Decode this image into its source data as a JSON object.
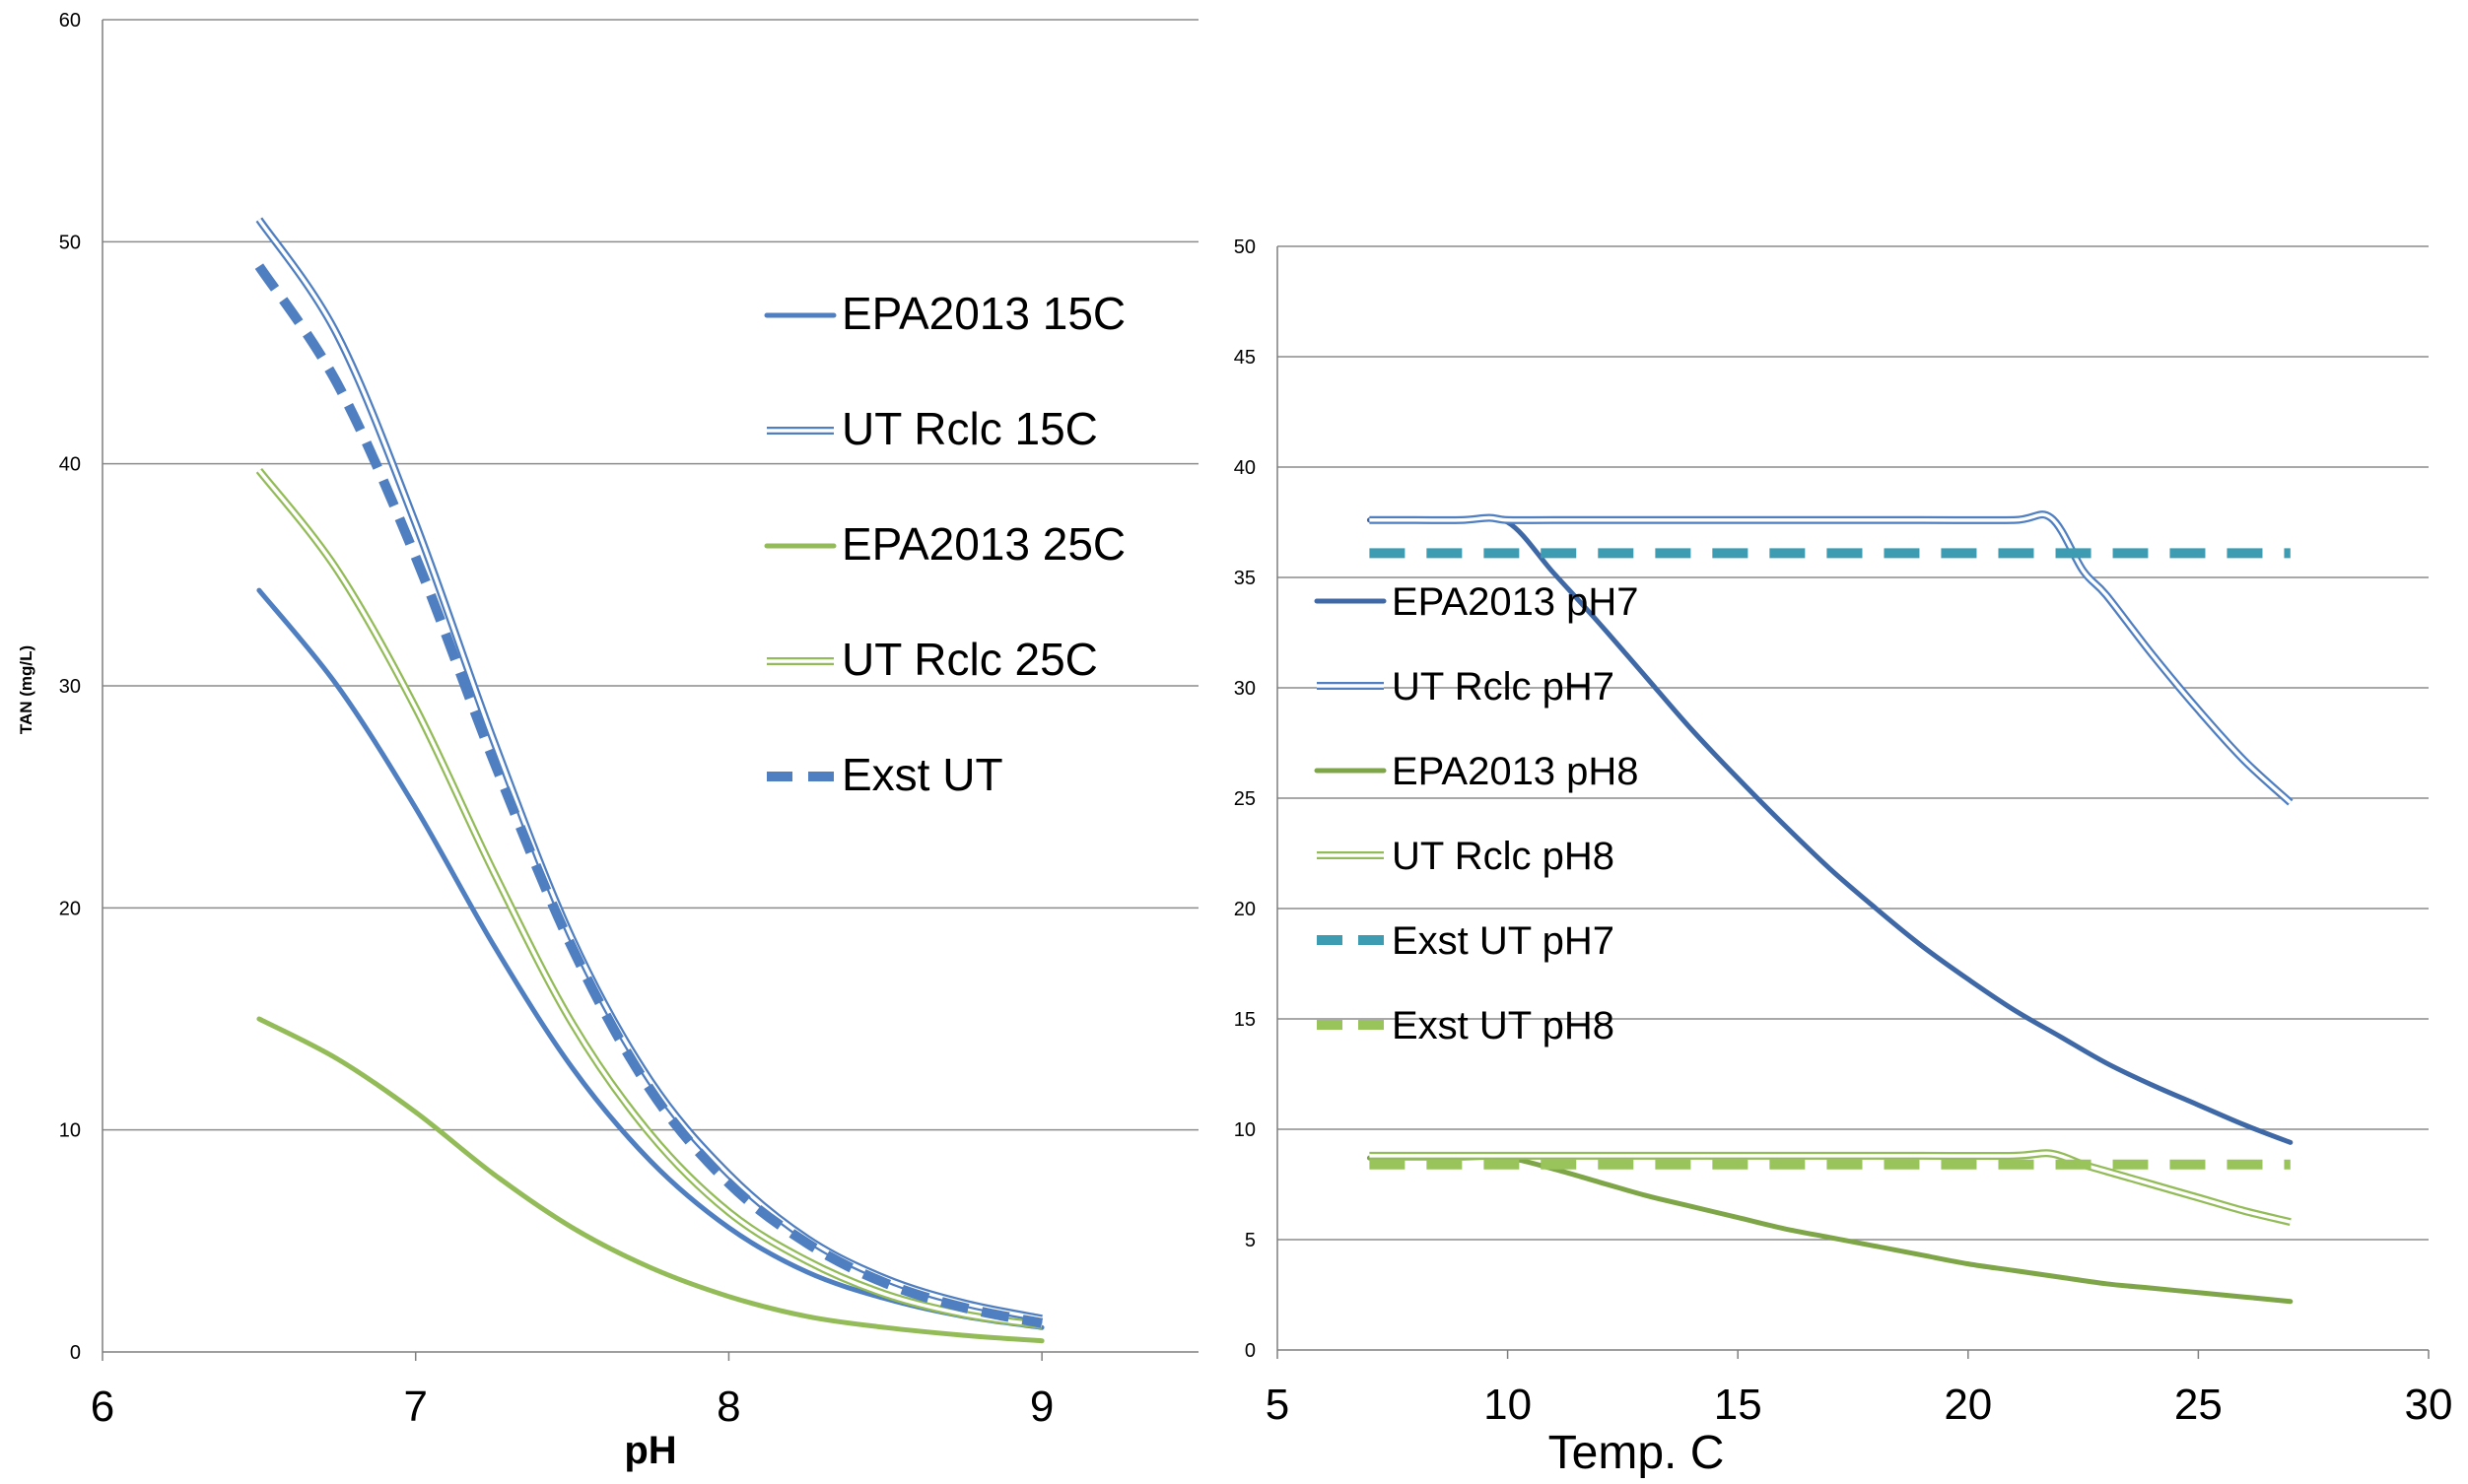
{
  "colors": {
    "blue": "#4f7ec1",
    "green": "#93bb58",
    "dark_blue": "#3f68a6",
    "olive_green": "#7ea547",
    "teal": "#3d9cb2",
    "light_green": "#99c45c",
    "grid": "#8c8c8c"
  },
  "chart_data": [
    {
      "type": "line",
      "title": "",
      "xlabel": "pH",
      "ylabel": "TAN (mg/L)",
      "xlim": [
        6,
        9.5
      ],
      "ylim": [
        0,
        60
      ],
      "xticks": [
        "6",
        "7",
        "8",
        "9"
      ],
      "yticks": [
        "0",
        "10",
        "20",
        "30",
        "40",
        "50",
        "60"
      ],
      "grid": true,
      "legend": "right",
      "series": [
        {
          "name": "EPA2013 15C",
          "color": "#4f7ec1",
          "style": "solid",
          "points": [
            [
              6.5,
              34.3
            ],
            [
              6.75,
              30.0
            ],
            [
              7.0,
              24.5
            ],
            [
              7.25,
              18.3
            ],
            [
              7.5,
              12.8
            ],
            [
              7.75,
              8.6
            ],
            [
              8.0,
              5.6
            ],
            [
              8.25,
              3.6
            ],
            [
              8.5,
              2.4
            ],
            [
              8.75,
              1.6
            ],
            [
              9.0,
              1.1
            ]
          ]
        },
        {
          "name": "UT Rclc 15C",
          "color": "#4f7ec1",
          "style": "double",
          "points": [
            [
              6.5,
              51.0
            ],
            [
              6.75,
              45.8
            ],
            [
              7.0,
              37.3
            ],
            [
              7.25,
              27.5
            ],
            [
              7.5,
              18.6
            ],
            [
              7.75,
              12.2
            ],
            [
              8.0,
              8.0
            ],
            [
              8.25,
              5.1
            ],
            [
              8.5,
              3.3
            ],
            [
              8.75,
              2.2
            ],
            [
              9.0,
              1.5
            ]
          ]
        },
        {
          "name": "EPA2013 25C",
          "color": "#93bb58",
          "style": "solid",
          "points": [
            [
              6.5,
              15.0
            ],
            [
              6.75,
              13.2
            ],
            [
              7.0,
              10.8
            ],
            [
              7.25,
              8.0
            ],
            [
              7.5,
              5.6
            ],
            [
              7.75,
              3.8
            ],
            [
              8.0,
              2.5
            ],
            [
              8.25,
              1.6
            ],
            [
              8.5,
              1.1
            ],
            [
              8.75,
              0.75
            ],
            [
              9.0,
              0.5
            ]
          ]
        },
        {
          "name": "UT Rclc 25C",
          "color": "#93bb58",
          "style": "double",
          "points": [
            [
              6.5,
              39.7
            ],
            [
              6.75,
              35.2
            ],
            [
              7.0,
              29.0
            ],
            [
              7.25,
              21.6
            ],
            [
              7.5,
              14.8
            ],
            [
              7.75,
              9.8
            ],
            [
              8.0,
              6.3
            ],
            [
              8.25,
              4.1
            ],
            [
              8.5,
              2.6
            ],
            [
              8.75,
              1.7
            ],
            [
              9.0,
              1.2
            ]
          ]
        },
        {
          "name": "Exst UT",
          "color": "#4f7ec1",
          "style": "dashed",
          "points": [
            [
              6.5,
              48.9
            ],
            [
              6.75,
              43.6
            ],
            [
              7.0,
              35.8
            ],
            [
              7.25,
              26.6
            ],
            [
              7.5,
              18.2
            ],
            [
              7.75,
              11.8
            ],
            [
              8.0,
              7.6
            ],
            [
              8.25,
              4.9
            ],
            [
              8.5,
              3.1
            ],
            [
              8.75,
              2.0
            ],
            [
              9.0,
              1.3
            ]
          ]
        }
      ]
    },
    {
      "type": "line",
      "title": "",
      "xlabel": "Temp. C",
      "ylabel": "",
      "xlim": [
        5,
        30
      ],
      "ylim": [
        0,
        50
      ],
      "xticks": [
        "5",
        "10",
        "15",
        "20",
        "25",
        "30"
      ],
      "yticks": [
        "0",
        "5",
        "10",
        "15",
        "20",
        "25",
        "30",
        "35",
        "40",
        "45",
        "50"
      ],
      "grid": true,
      "legend": "left",
      "series": [
        {
          "name": "EPA2013 pH7",
          "color": "#3f68a6",
          "style": "solid",
          "points": [
            [
              7,
              37.6
            ],
            [
              8,
              37.6
            ],
            [
              9,
              37.6
            ],
            [
              10,
              37.5
            ],
            [
              11,
              35.2
            ],
            [
              12,
              32.9
            ],
            [
              13,
              30.5
            ],
            [
              14,
              28.1
            ],
            [
              15,
              25.9
            ],
            [
              16,
              23.8
            ],
            [
              17,
              21.8
            ],
            [
              18,
              20.0
            ],
            [
              19,
              18.3
            ],
            [
              20,
              16.8
            ],
            [
              21,
              15.4
            ],
            [
              22,
              14.2
            ],
            [
              23,
              13.0
            ],
            [
              24,
              12.0
            ],
            [
              25,
              11.1
            ],
            [
              26,
              10.2
            ],
            [
              27,
              9.4
            ]
          ]
        },
        {
          "name": "UT Rclc pH7",
          "color": "#4f7ec1",
          "style": "double",
          "points": [
            [
              7,
              37.6
            ],
            [
              8,
              37.6
            ],
            [
              9,
              37.6
            ],
            [
              9.6,
              37.7
            ],
            [
              10,
              37.6
            ],
            [
              11,
              37.6
            ],
            [
              13,
              37.6
            ],
            [
              15,
              37.6
            ],
            [
              17,
              37.6
            ],
            [
              19,
              37.6
            ],
            [
              21,
              37.6
            ],
            [
              21.8,
              37.7
            ],
            [
              22.5,
              35.3
            ],
            [
              23,
              34.2
            ],
            [
              24,
              31.5
            ],
            [
              25,
              29.0
            ],
            [
              26,
              26.7
            ],
            [
              27,
              24.8
            ]
          ]
        },
        {
          "name": "EPA2013 pH8",
          "color": "#7ea547",
          "style": "solid",
          "points": [
            [
              7,
              8.7
            ],
            [
              8,
              8.7
            ],
            [
              9,
              8.7
            ],
            [
              10,
              8.7
            ],
            [
              11,
              8.2
            ],
            [
              12,
              7.6
            ],
            [
              13,
              7.0
            ],
            [
              14,
              6.5
            ],
            [
              15,
              6.0
            ],
            [
              16,
              5.5
            ],
            [
              17,
              5.1
            ],
            [
              18,
              4.7
            ],
            [
              19,
              4.3
            ],
            [
              20,
              3.9
            ],
            [
              21,
              3.6
            ],
            [
              22,
              3.3
            ],
            [
              23,
              3.0
            ],
            [
              24,
              2.8
            ],
            [
              25,
              2.6
            ],
            [
              26,
              2.4
            ],
            [
              27,
              2.2
            ]
          ]
        },
        {
          "name": "UT Rclc pH8",
          "color": "#93bb58",
          "style": "double",
          "points": [
            [
              7,
              8.8
            ],
            [
              9,
              8.8
            ],
            [
              11,
              8.8
            ],
            [
              13,
              8.8
            ],
            [
              15,
              8.8
            ],
            [
              17,
              8.8
            ],
            [
              19,
              8.8
            ],
            [
              21,
              8.8
            ],
            [
              21.8,
              8.9
            ],
            [
              22.5,
              8.4
            ],
            [
              23,
              8.1
            ],
            [
              24,
              7.5
            ],
            [
              25,
              6.9
            ],
            [
              26,
              6.3
            ],
            [
              27,
              5.8
            ]
          ]
        },
        {
          "name": "Exst UT pH7",
          "color": "#3d9cb2",
          "style": "dashed",
          "points": [
            [
              7,
              36.1
            ],
            [
              27,
              36.1
            ]
          ]
        },
        {
          "name": "Exst UT pH8",
          "color": "#99c45c",
          "style": "dashed",
          "points": [
            [
              7,
              8.4
            ],
            [
              27,
              8.4
            ]
          ]
        }
      ]
    }
  ]
}
